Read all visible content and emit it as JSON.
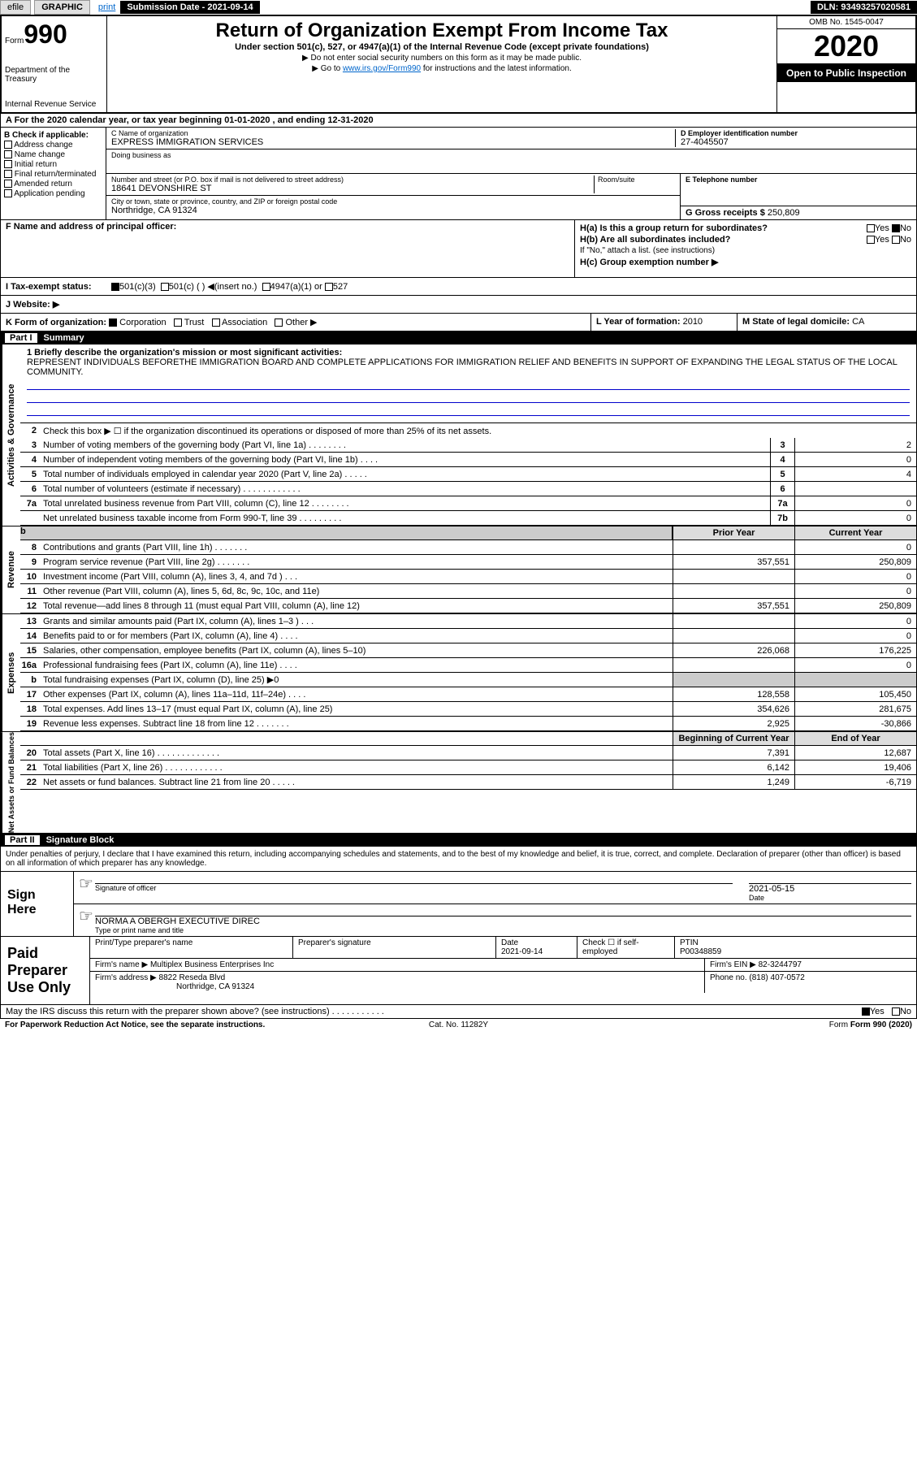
{
  "topbar": {
    "efile": "efile",
    "graphic": "GRAPHIC",
    "print": "print",
    "sub_label": "Submission Date -",
    "sub_date": "2021-09-14",
    "dln": "DLN: 93493257020581"
  },
  "header": {
    "form_label": "Form",
    "form_num": "990",
    "dept": "Department of the Treasury",
    "irs": "Internal Revenue Service",
    "title": "Return of Organization Exempt From Income Tax",
    "sub": "Under section 501(c), 527, or 4947(a)(1) of the Internal Revenue Code (except private foundations)",
    "note1": "▶ Do not enter social security numbers on this form as it may be made public.",
    "note2_pre": "▶ Go to ",
    "note2_link": "www.irs.gov/Form990",
    "note2_post": " for instructions and the latest information.",
    "omb": "OMB No. 1545-0047",
    "year": "2020",
    "open": "Open to Public Inspection"
  },
  "line_a": "A For the 2020 calendar year, or tax year beginning 01-01-2020    , and ending 12-31-2020",
  "b": {
    "label": "B Check if applicable:",
    "addr": "Address change",
    "name": "Name change",
    "init": "Initial return",
    "final": "Final return/terminated",
    "amend": "Amended return",
    "app": "Application pending"
  },
  "c": {
    "name_label": "C Name of organization",
    "name": "EXPRESS IMMIGRATION SERVICES",
    "dba_label": "Doing business as",
    "street_label": "Number and street (or P.O. box if mail is not delivered to street address)",
    "street": "18641 DEVONSHIRE ST",
    "room_label": "Room/suite",
    "city_label": "City or town, state or province, country, and ZIP or foreign postal code",
    "city": "Northridge, CA  91324"
  },
  "d": {
    "label": "D Employer identification number",
    "ein": "27-4045507"
  },
  "e": {
    "label": "E Telephone number"
  },
  "g": {
    "label": "G Gross receipts $",
    "val": "250,809"
  },
  "f": {
    "label": "F  Name and address of principal officer:"
  },
  "h": {
    "a": "H(a)  Is this a group return for subordinates?",
    "b": "H(b)  Are all subordinates included?",
    "b_note": "If \"No,\" attach a list. (see instructions)",
    "c": "H(c)  Group exemption number ▶",
    "yes": "Yes",
    "no": "No"
  },
  "i": {
    "label": "I  Tax-exempt status:",
    "c3": "501(c)(3)",
    "c": "501(c) (  ) ◀(insert no.)",
    "a1": "4947(a)(1) or",
    "s527": "527"
  },
  "j": {
    "label": "J  Website: ▶"
  },
  "k": {
    "label": "K Form of organization:",
    "corp": "Corporation",
    "trust": "Trust",
    "assoc": "Association",
    "other": "Other ▶"
  },
  "l": {
    "label": "L Year of formation:",
    "val": "2010"
  },
  "m": {
    "label": "M State of legal domicile:",
    "val": "CA"
  },
  "part1": {
    "num": "Part I",
    "title": "Summary"
  },
  "summary": {
    "l1": "1  Briefly describe the organization's mission or most significant activities:",
    "mission": "REPRESENT INDIVIDUALS BEFORETHE IMMIGRATION BOARD AND COMPLETE APPLICATIONS FOR IMMIGRATION RELIEF AND BENEFITS IN SUPPORT OF EXPANDING THE LEGAL STATUS OF THE LOCAL COMMUNITY.",
    "l2": "Check this box ▶ ☐  if the organization discontinued its operations or disposed of more than 25% of its net assets.",
    "rows_ag": [
      {
        "n": "3",
        "d": "Number of voting members of the governing body (Part VI, line 1a)  .   .   .   .   .   .   .   .",
        "b": "3",
        "v": "2"
      },
      {
        "n": "4",
        "d": "Number of independent voting members of the governing body (Part VI, line 1b)  .   .   .   .",
        "b": "4",
        "v": "0"
      },
      {
        "n": "5",
        "d": "Total number of individuals employed in calendar year 2020 (Part V, line 2a)  .   .   .   .   .",
        "b": "5",
        "v": "4"
      },
      {
        "n": "6",
        "d": "Total number of volunteers (estimate if necessary)   .    .    .    .    .    .    .    .    .    .    .    .",
        "b": "6",
        "v": ""
      },
      {
        "n": "7a",
        "d": "Total unrelated business revenue from Part VIII, column (C), line 12  .   .   .   .   .   .   .   .",
        "b": "7a",
        "v": "0"
      },
      {
        "n": "",
        "d": "Net unrelated business taxable income from Form 990-T, line 39   .   .   .   .   .   .   .   .   .",
        "b": "7b",
        "v": "0"
      }
    ],
    "prior": "Prior Year",
    "current": "Current Year",
    "rows_rev": [
      {
        "n": "8",
        "d": "Contributions and grants (Part VIII, line 1h)   .    .    .    .    .    .    .",
        "p": "",
        "c": "0"
      },
      {
        "n": "9",
        "d": "Program service revenue (Part VIII, line 2g)   .    .    .    .    .    .    .",
        "p": "357,551",
        "c": "250,809"
      },
      {
        "n": "10",
        "d": "Investment income (Part VIII, column (A), lines 3, 4, and 7d )   .    .    .",
        "p": "",
        "c": "0"
      },
      {
        "n": "11",
        "d": "Other revenue (Part VIII, column (A), lines 5, 6d, 8c, 9c, 10c, and 11e)",
        "p": "",
        "c": "0"
      },
      {
        "n": "12",
        "d": "Total revenue—add lines 8 through 11 (must equal Part VIII, column (A), line 12)",
        "p": "357,551",
        "c": "250,809"
      }
    ],
    "rows_exp": [
      {
        "n": "13",
        "d": "Grants and similar amounts paid (Part IX, column (A), lines 1–3 )  .   .   .",
        "p": "",
        "c": "0"
      },
      {
        "n": "14",
        "d": "Benefits paid to or for members (Part IX, column (A), line 4)  .   .   .   .",
        "p": "",
        "c": "0"
      },
      {
        "n": "15",
        "d": "Salaries, other compensation, employee benefits (Part IX, column (A), lines 5–10)",
        "p": "226,068",
        "c": "176,225"
      },
      {
        "n": "16a",
        "d": "Professional fundraising fees (Part IX, column (A), line 11e)  .   .   .   .",
        "p": "",
        "c": "0"
      },
      {
        "n": "b",
        "d": "Total fundraising expenses (Part IX, column (D), line 25) ▶0",
        "p": "gray",
        "c": "gray"
      },
      {
        "n": "17",
        "d": "Other expenses (Part IX, column (A), lines 11a–11d, 11f–24e)  .   .   .   .",
        "p": "128,558",
        "c": "105,450"
      },
      {
        "n": "18",
        "d": "Total expenses. Add lines 13–17 (must equal Part IX, column (A), line 25)",
        "p": "354,626",
        "c": "281,675"
      },
      {
        "n": "19",
        "d": "Revenue less expenses. Subtract line 18 from line 12 .   .   .   .   .   .   .",
        "p": "2,925",
        "c": "-30,866"
      }
    ],
    "begin": "Beginning of Current Year",
    "end": "End of Year",
    "rows_na": [
      {
        "n": "20",
        "d": "Total assets (Part X, line 16)  .   .   .   .   .   .   .   .   .   .   .   .   .",
        "p": "7,391",
        "c": "12,687"
      },
      {
        "n": "21",
        "d": "Total liabilities (Part X, line 26)   .   .   .   .   .   .   .   .   .   .   .   .",
        "p": "6,142",
        "c": "19,406"
      },
      {
        "n": "22",
        "d": "Net assets or fund balances. Subtract line 21 from line 20 .   .   .   .   .",
        "p": "1,249",
        "c": "-6,719"
      }
    ]
  },
  "side_labels": {
    "ag": "Activities & Governance",
    "rev": "Revenue",
    "exp": "Expenses",
    "na": "Net Assets or Fund Balances"
  },
  "part2": {
    "num": "Part II",
    "title": "Signature Block"
  },
  "sig": {
    "intro": "Under penalties of perjury, I declare that I have examined this return, including accompanying schedules and statements, and to the best of my knowledge and belief, it is true, correct, and complete. Declaration of preparer (other than officer) is based on all information of which preparer has any knowledge.",
    "here": "Sign Here",
    "off_sig": "Signature of officer",
    "date_label": "Date",
    "date": "2021-05-15",
    "name": "NORMA A OBERGH  EXECUTIVE DIREC",
    "type_label": "Type or print name and title"
  },
  "prep": {
    "label": "Paid Preparer Use Only",
    "pt_name": "Print/Type preparer's name",
    "pt_sig": "Preparer's signature",
    "pt_date_label": "Date",
    "pt_date": "2021-09-14",
    "pt_check": "Check ☐ if self-employed",
    "pt_ptin_label": "PTIN",
    "pt_ptin": "P00348859",
    "firm_name_label": "Firm's name    ▶",
    "firm_name": "Multiplex Business Enterprises Inc",
    "firm_ein_label": "Firm's EIN ▶",
    "firm_ein": "82-3244797",
    "firm_addr_label": "Firm's address ▶",
    "firm_addr": "8822 Reseda Blvd",
    "firm_city": "Northridge, CA  91324",
    "phone_label": "Phone no.",
    "phone": "(818) 407-0572"
  },
  "discuss": {
    "q": "May the IRS discuss this return with the preparer shown above? (see instructions)   .    .    .    .    .    .    .    .    .    .    .",
    "yes": "Yes",
    "no": "No"
  },
  "footer": {
    "l": "For Paperwork Reduction Act Notice, see the separate instructions.",
    "c": "Cat. No. 11282Y",
    "r": "Form 990 (2020)"
  }
}
